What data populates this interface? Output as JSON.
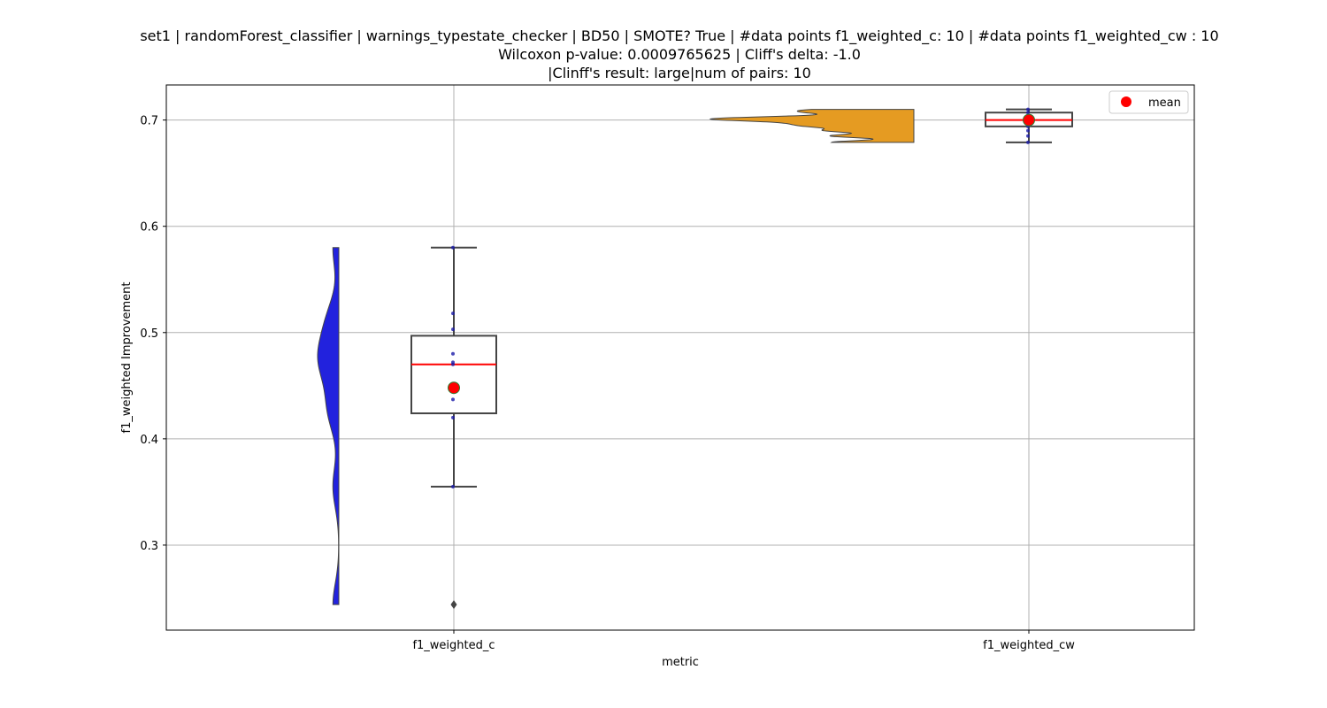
{
  "chart_data": {
    "type": "box",
    "title_lines": [
      "set1 | randomForest_classifier | warnings_typestate_checker | BD50 | SMOTE? True | #data points f1_weighted_c: 10 | #data points f1_weighted_cw : 10",
      "Wilcoxon p-value: 0.0009765625 | Cliff's delta: -1.0",
      "|Clinff's result: large|num of pairs: 10"
    ],
    "xlabel": "metric",
    "ylabel": "f1_weighted Improvement",
    "categories": [
      "f1_weighted_c",
      "f1_weighted_cw"
    ],
    "ylim": [
      0.22,
      0.733
    ],
    "yticks": [
      0.3,
      0.4,
      0.5,
      0.6,
      0.7
    ],
    "grid": true,
    "legend": {
      "position": "top-right",
      "entries": [
        {
          "label": "mean",
          "color": "#ff0000"
        }
      ]
    },
    "colors": {
      "violin_c": "#2222dd",
      "violin_cw": "#e59b22",
      "median": "#ff0000",
      "mean": "#ff0000",
      "box_edge": "#444444",
      "points": "#1a1aa8"
    },
    "series": [
      {
        "category": "f1_weighted_c",
        "box": {
          "whisker_low": 0.355,
          "q1": 0.424,
          "median": 0.47,
          "q3": 0.497,
          "whisker_high": 0.58
        },
        "mean": 0.448,
        "outliers": [
          0.244
        ],
        "points": [
          0.244,
          0.355,
          0.42,
          0.437,
          0.47,
          0.472,
          0.48,
          0.503,
          0.518,
          0.58
        ],
        "violin_range": [
          0.244,
          0.58
        ]
      },
      {
        "category": "f1_weighted_cw",
        "box": {
          "whisker_low": 0.679,
          "q1": 0.694,
          "median": 0.7,
          "q3": 0.707,
          "whisker_high": 0.71
        },
        "mean": 0.7,
        "outliers": [],
        "points": [
          0.679,
          0.685,
          0.69,
          0.694,
          0.697,
          0.7,
          0.701,
          0.703,
          0.707,
          0.71
        ],
        "violin_range": [
          0.679,
          0.71
        ]
      }
    ]
  }
}
